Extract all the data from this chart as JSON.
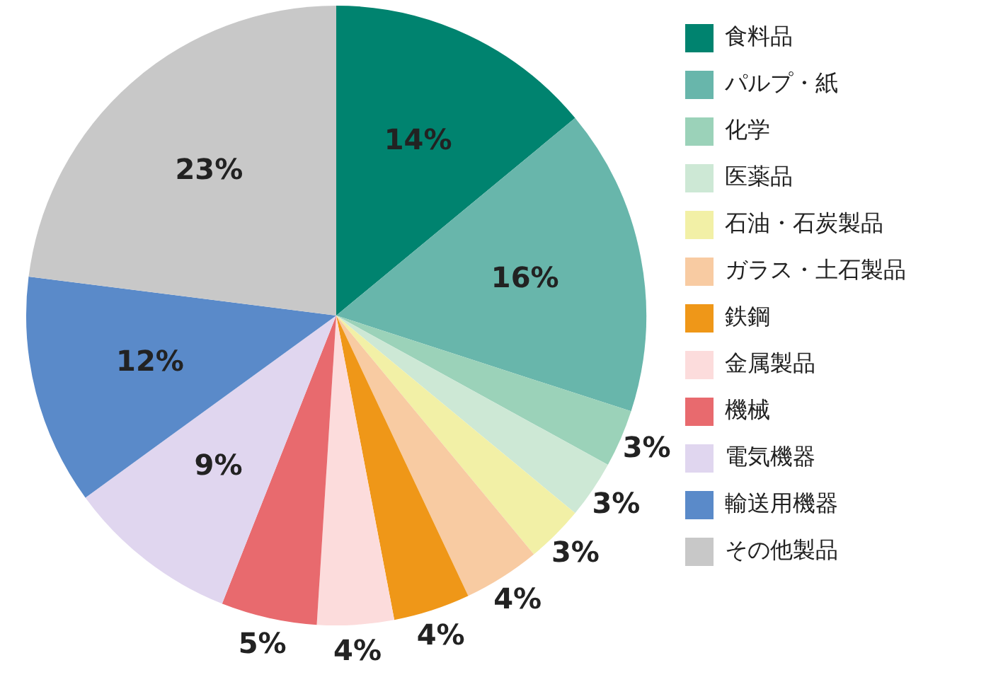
{
  "chart_data": {
    "type": "pie",
    "categories": [
      "食料品",
      "パルプ・紙",
      "化学",
      "医薬品",
      "石油・石炭製品",
      "ガラス・土石製品",
      "鉄鋼",
      "金属製品",
      "機械",
      "電気機器",
      "輸送用機器",
      "その他製品"
    ],
    "values": [
      14,
      16,
      3,
      3,
      3,
      4,
      4,
      4,
      5,
      9,
      12,
      23
    ],
    "value_labels": [
      "14%",
      "16%",
      "3%",
      "3%",
      "3%",
      "4%",
      "4%",
      "4%",
      "5%",
      "9%",
      "12%",
      "23%"
    ],
    "colors": [
      "#00836f",
      "#68b6ab",
      "#9bd2b9",
      "#cde8d5",
      "#f2f0a6",
      "#f8cba2",
      "#ef9718",
      "#fcdcdc",
      "#e86a6e",
      "#e0d6ef",
      "#5a8ac9",
      "#c8c8c8"
    ],
    "legend": "right"
  }
}
